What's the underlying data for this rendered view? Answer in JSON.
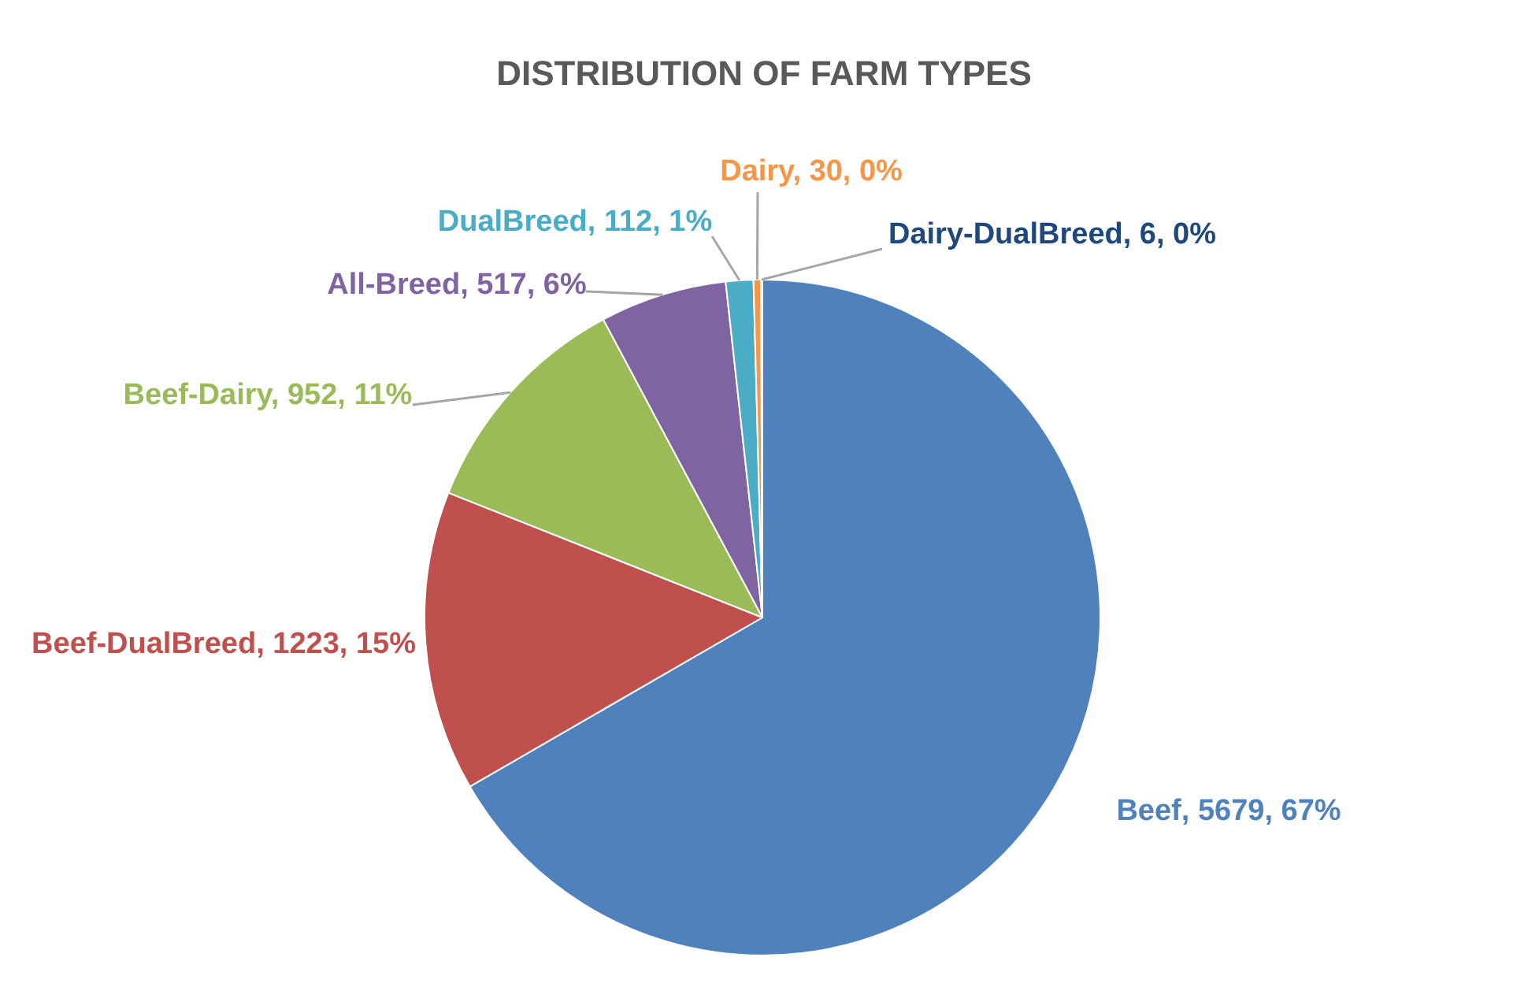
{
  "chart_data": {
    "type": "pie",
    "title": "DISTRIBUTION OF FARM TYPES",
    "categories": [
      "Beef",
      "Beef-DualBreed",
      "Beef-Dairy",
      "All-Breed",
      "DualBreed",
      "Dairy",
      "Dairy-DualBreed"
    ],
    "values": [
      5679,
      1223,
      952,
      517,
      112,
      30,
      6
    ],
    "colors": [
      "#4f81bd",
      "#c0504d",
      "#9bbb59",
      "#8064a2",
      "#4bacc6",
      "#f79646",
      "#1f497d"
    ],
    "value_labels": [
      "5679, 67%",
      "1223, 15%",
      "952, 11%",
      "517, 6%",
      "112, 1%",
      "30, 0%",
      "6, 0%"
    ],
    "legend": false
  }
}
